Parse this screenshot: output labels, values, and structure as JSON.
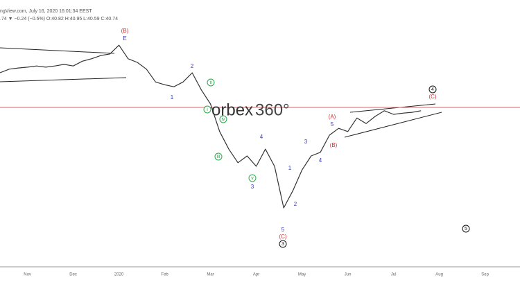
{
  "header": {
    "source": "ngView.com, July 16, 2020 16:01:34 EEST",
    "quote": ".74 ▼ −0.24 (−0.6%) O:40.82 H:40.95 L:40.59 C:40.74"
  },
  "logo": {
    "brand": "orbex",
    "suffix": "360°"
  },
  "chart_data": {
    "type": "line",
    "categories": [
      null,
      null,
      null,
      "Nov",
      null,
      null,
      null,
      null,
      "Dec",
      null,
      null,
      null,
      null,
      "2020",
      null,
      null,
      null,
      null,
      "Feb",
      null,
      null,
      null,
      null,
      "Mar",
      null,
      null,
      null,
      null,
      "Apr",
      null,
      null,
      null,
      null,
      "May",
      null,
      null,
      null,
      null,
      "Jun",
      null,
      null,
      null,
      null,
      "Jul",
      null,
      null,
      null,
      null,
      "Aug",
      null,
      null,
      null,
      null,
      "Sep",
      null,
      null,
      null
    ],
    "series": [
      {
        "color": "#333333",
        "values": [
          49.4,
          50.3,
          50.6,
          50.8,
          51.1,
          50.8,
          51.1,
          51.5,
          51.1,
          52.3,
          52.9,
          53.7,
          54.1,
          56.3,
          52.9,
          52.0,
          50.3,
          47.1,
          46.4,
          45.9,
          47.1,
          49.4,
          45.1,
          41.6,
          34.7,
          30.3,
          26.9,
          28.6,
          26.0,
          30.3,
          26.0,
          15.6,
          19.9,
          25.1,
          28.6,
          29.5,
          33.8,
          35.5,
          34.7,
          38.1,
          36.7,
          38.5,
          39.9,
          39.0,
          39.3,
          39.5,
          39.9,
          null,
          null,
          null,
          null,
          null,
          null,
          null,
          null,
          null,
          null
        ]
      }
    ],
    "reference_line": {
      "value": 40.74,
      "color": "#e06060"
    },
    "ylim": [
      0,
      67.6
    ],
    "annotations": [
      {
        "text": "(B)",
        "color": "#d03030"
      },
      {
        "text": "E",
        "color": "#3a3ab0"
      },
      {
        "text": "2",
        "color": "#3a3ab0"
      },
      {
        "text": "1",
        "color": "#3a3ab0"
      },
      {
        "text": "ii",
        "color": "#2aa84a",
        "circled": true
      },
      {
        "text": "i",
        "color": "#2aa84a",
        "circled": true
      },
      {
        "text": "iv",
        "color": "#2aa84a",
        "circled": true
      },
      {
        "text": "iii",
        "color": "#2aa84a",
        "circled": true
      },
      {
        "text": "4",
        "color": "#3a3ab0"
      },
      {
        "text": "v",
        "color": "#2aa84a",
        "circled": true
      },
      {
        "text": "3",
        "color": "#3a3ab0"
      },
      {
        "text": "1",
        "color": "#3a3ab0"
      },
      {
        "text": "2",
        "color": "#3a3ab0"
      },
      {
        "text": "5",
        "color": "#3a3ab0"
      },
      {
        "text": "(C)",
        "color": "#d03030"
      },
      {
        "text": "3",
        "color": "#111111",
        "circled": true
      },
      {
        "text": "3",
        "color": "#3a3ab0"
      },
      {
        "text": "4",
        "color": "#3a3ab0"
      },
      {
        "text": "(A)",
        "color": "#d03030"
      },
      {
        "text": "5",
        "color": "#3a3ab0"
      },
      {
        "text": "(B)",
        "color": "#d03030"
      },
      {
        "text": "4",
        "color": "#111111",
        "circled": true
      },
      {
        "text": "(C)",
        "color": "#d03030"
      },
      {
        "text": "5",
        "color": "#111111",
        "circled": true
      }
    ]
  }
}
